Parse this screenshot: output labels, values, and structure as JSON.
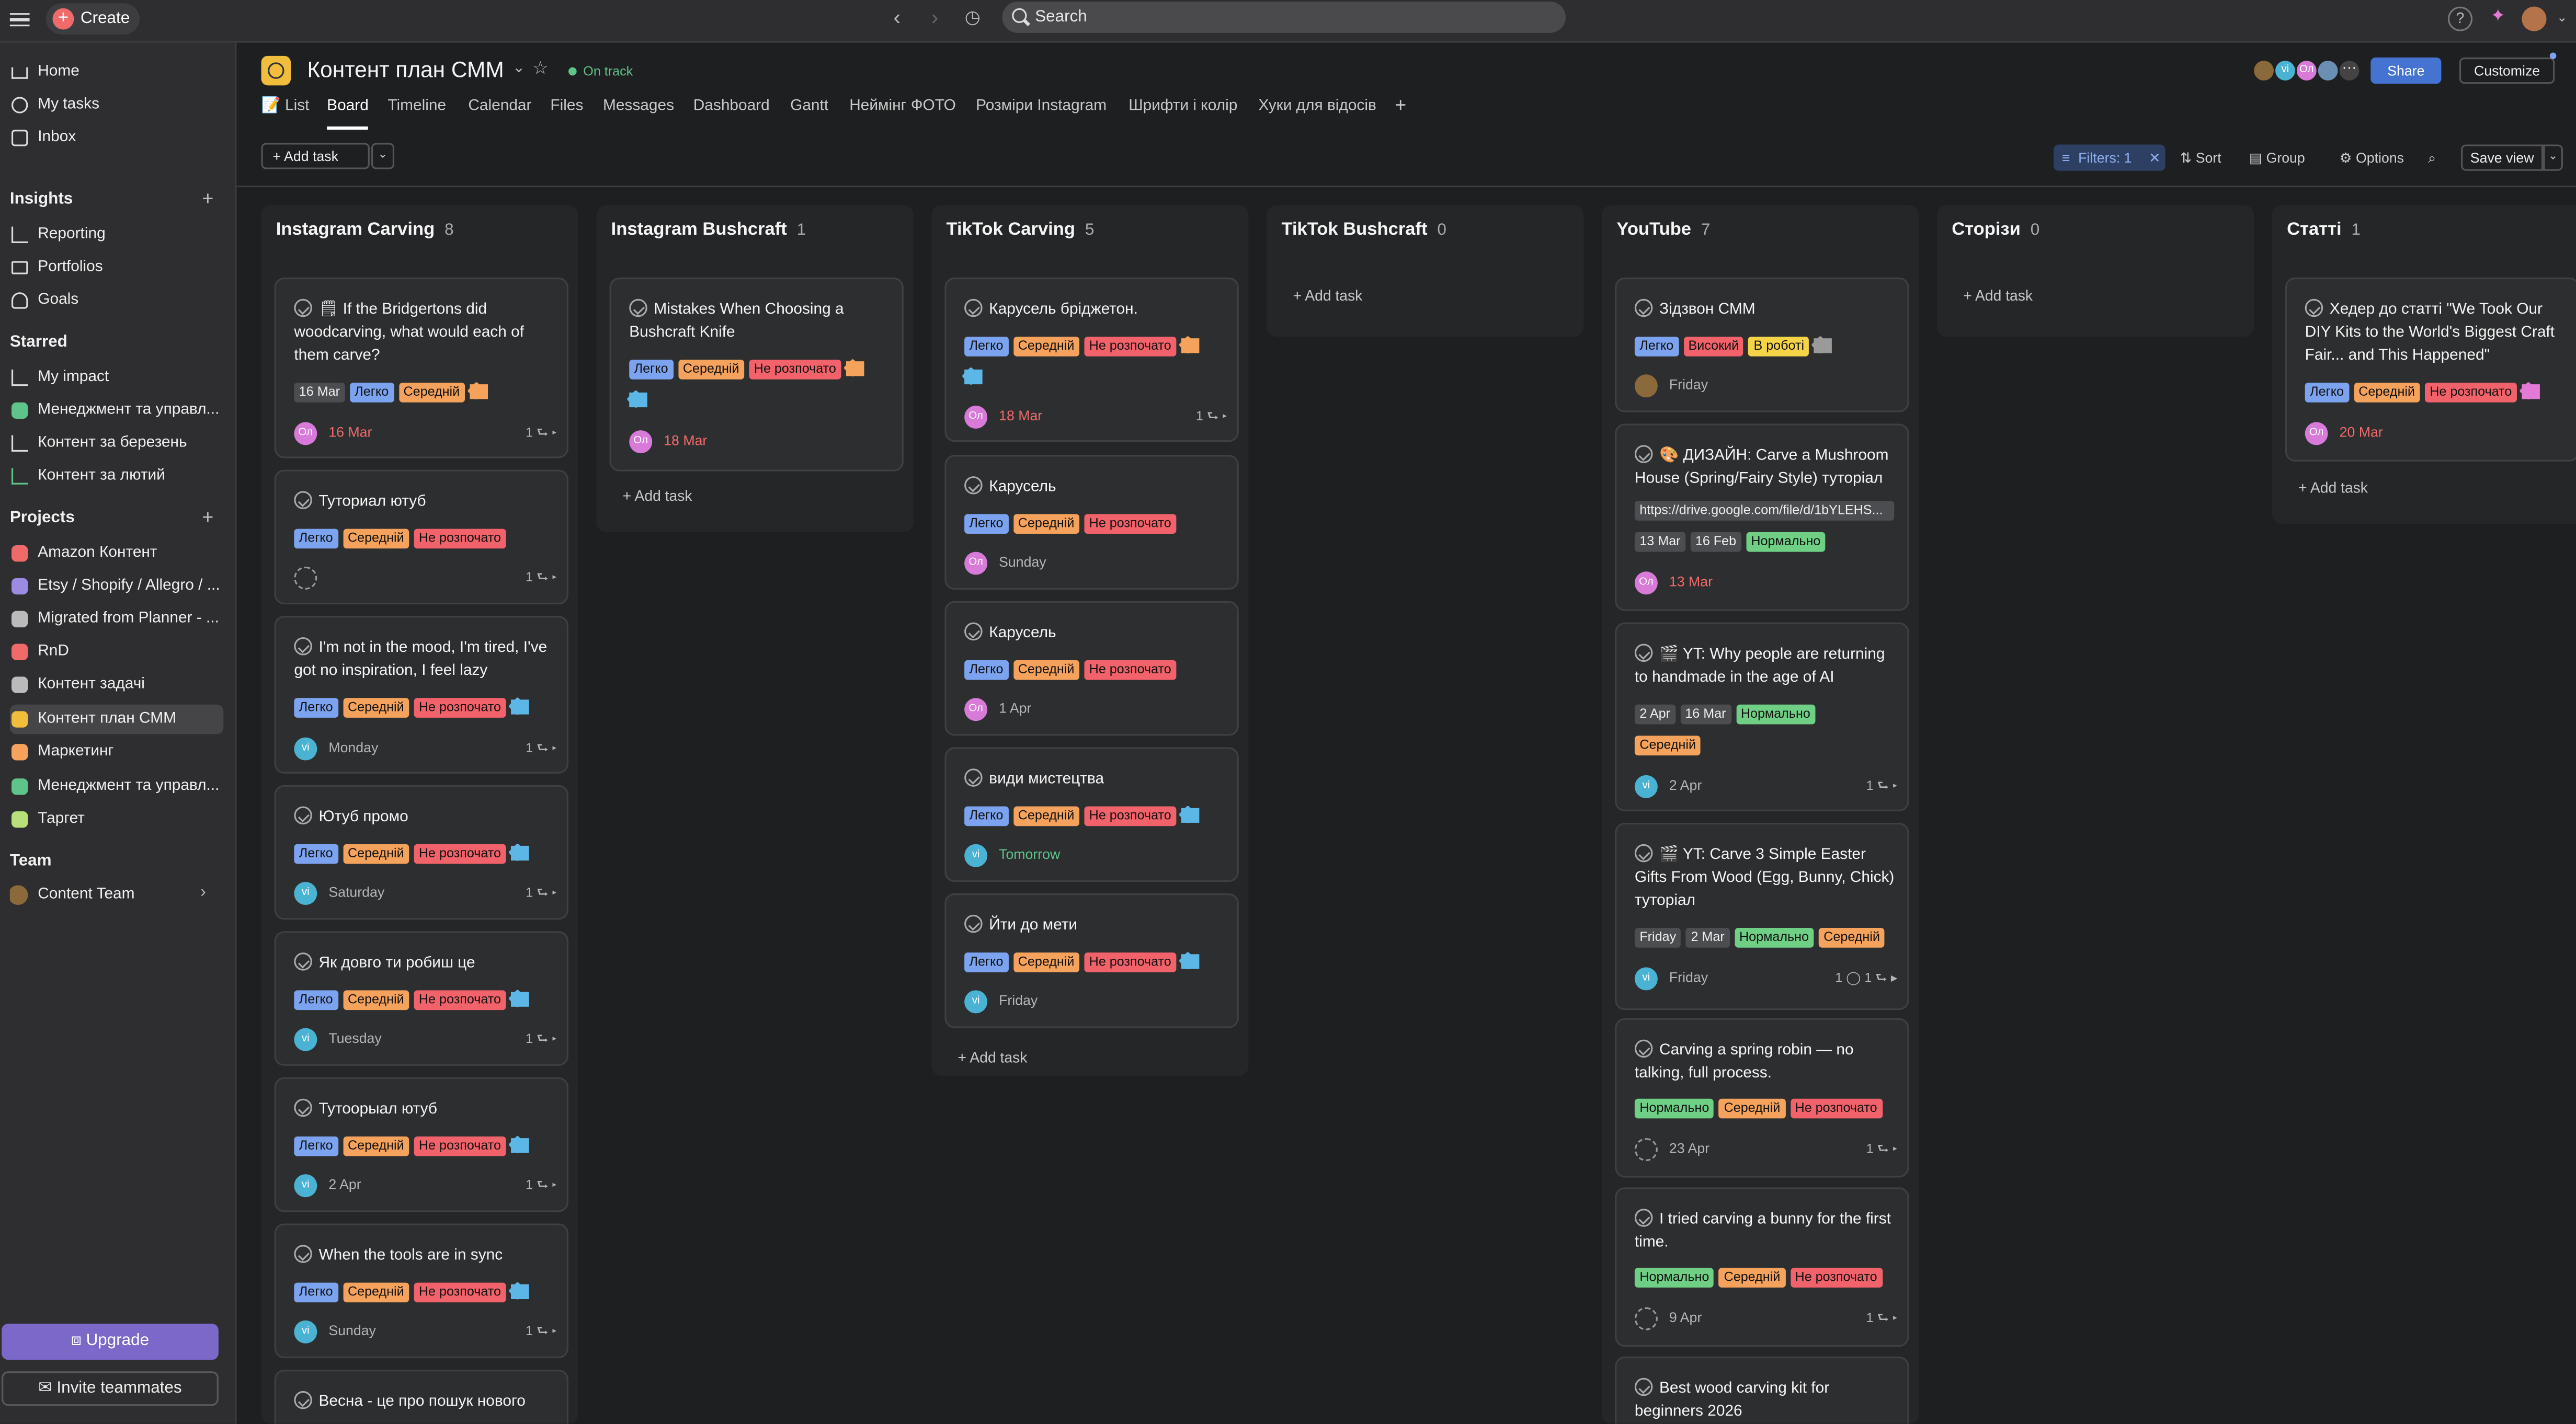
{
  "topbar": {
    "create": "Create",
    "search": "Search"
  },
  "sidebar": {
    "nav": [
      {
        "label": "Home",
        "icon": "home-icon"
      },
      {
        "label": "My tasks",
        "icon": "check-circle-icon"
      },
      {
        "label": "Inbox",
        "icon": "inbox-icon"
      }
    ],
    "insights_title": "Insights",
    "insights": [
      {
        "label": "Reporting"
      },
      {
        "label": "Portfolios"
      },
      {
        "label": "Goals"
      }
    ],
    "starred_title": "Starred",
    "starred": [
      {
        "label": "My impact",
        "color": "#888888"
      },
      {
        "label": "Менеджмент та управл...",
        "color": "#5ec48a"
      },
      {
        "label": "Контент за березень",
        "color": "#aaaaaa"
      },
      {
        "label": "Контент за лютий",
        "color": "#5ec48a"
      }
    ],
    "projects_title": "Projects",
    "projects": [
      {
        "label": "Amazon Контент",
        "color": "#f06a6a"
      },
      {
        "label": "Etsy / Shopify / Allegro / ...",
        "color": "#9d8be3"
      },
      {
        "label": "Migrated from Planner - ...",
        "color": "#bbbbbb"
      },
      {
        "label": "RnD",
        "color": "#f06a6a"
      },
      {
        "label": "Контент задачі",
        "color": "#bbbbbb"
      },
      {
        "label": "Контент план СММ",
        "color": "#f1bd3c"
      },
      {
        "label": "Маркетинг",
        "color": "#f5a25c"
      },
      {
        "label": "Менеджмент та управл...",
        "color": "#5ec48a"
      },
      {
        "label": "Таргет",
        "color": "#b7e07a"
      }
    ],
    "team_title": "Team",
    "team": "Content Team",
    "upgrade": "Upgrade",
    "invite": "Invite teammates"
  },
  "header": {
    "title": "Контент план  СММ",
    "status": "On track",
    "tabs": [
      "📝 List",
      "Board",
      "Timeline",
      "Calendar",
      "Files",
      "Messages",
      "Dashboard",
      "Gantt",
      "Неймінг ФОТО",
      "Розміри Instagram",
      "Шрифти і колір",
      "Хуки для відосів"
    ],
    "share": "Share",
    "customize": "Customize",
    "members": [
      "",
      "vi",
      "Ол",
      ""
    ],
    "add_task": "Add task",
    "filters": "Filters: 1",
    "sort": "Sort",
    "group": "Group",
    "options": "Options",
    "save_view": "Save view"
  },
  "board": {
    "add_task": "Add task",
    "columns": [
      {
        "title": "Instagram Carving",
        "count": "8"
      },
      {
        "title": "Instagram Bushcraft",
        "count": "1"
      },
      {
        "title": "TikTok Carving",
        "count": "5"
      },
      {
        "title": "TikTok Bushcraft",
        "count": "0"
      },
      {
        "title": "YouTube",
        "count": "7"
      },
      {
        "title": "Сторізи",
        "count": "0"
      },
      {
        "title": "Статті",
        "count": "1"
      }
    ],
    "cards": {
      "c0_0": {
        "title": "🗒 If the Bridgertons did woodcarving, what would each of them carve?",
        "tags": [
          "16 Mar",
          "Легко",
          "Середній"
        ],
        "due": "16 Mar",
        "sub": "1 ⮑ ▸",
        "av": "Ол"
      },
      "c0_1": {
        "title": "Туториал ютуб",
        "tags": [
          "Легко",
          "Середній",
          "Не розпочато"
        ],
        "due": "",
        "sub": "1 ⮑ ▸"
      },
      "c0_2": {
        "title": "I'm not in the mood, I'm tired, I've got no inspiration, I feel lazy",
        "tags": [
          "Легко",
          "Середній",
          "Не розпочато"
        ],
        "due": "Monday",
        "sub": "1 ⮑ ▸",
        "av": "vi"
      },
      "c0_3": {
        "title": "Ютуб промо",
        "tags": [
          "Легко",
          "Середній",
          "Не розпочато"
        ],
        "due": "Saturday",
        "sub": "1 ⮑ ▸",
        "av": "vi"
      },
      "c0_4": {
        "title": "Як довго ти робиш це",
        "tags": [
          "Легко",
          "Середній",
          "Не розпочато"
        ],
        "due": "Tuesday",
        "sub": "1 ⮑ ▸",
        "av": "vi"
      },
      "c0_5": {
        "title": "Тутоорыал ютуб",
        "tags": [
          "Легко",
          "Середній",
          "Не розпочато"
        ],
        "due": "2 Apr",
        "sub": "1 ⮑ ▸",
        "av": "vi"
      },
      "c0_6": {
        "title": "When the tools are in sync",
        "tags": [
          "Легко",
          "Середній",
          "Не розпочато"
        ],
        "due": "Sunday",
        "sub": "1 ⮑ ▸",
        "av": "vi"
      },
      "c0_7": {
        "title": "Весна - це про пошук нового"
      },
      "c1_0": {
        "title": "Mistakes When Choosing a Bushcraft Knife",
        "tags": [
          "Легко",
          "Середній",
          "Не розпочато"
        ],
        "due": "18 Mar",
        "av": "Ол"
      },
      "c2_0": {
        "title": "Карусель бріджетон.",
        "tags": [
          "Легко",
          "Середній",
          "Не розпочато"
        ],
        "due": "18 Mar",
        "sub": "1 ⮑ ▸",
        "av": "Ол"
      },
      "c2_1": {
        "title": "Карусель",
        "tags": [
          "Легко",
          "Середній",
          "Не розпочато"
        ],
        "due": "Sunday",
        "av": "Ол"
      },
      "c2_2": {
        "title": "Карусель",
        "tags": [
          "Легко",
          "Середній",
          "Не розпочато"
        ],
        "due": "1 Apr",
        "av": "Ол"
      },
      "c2_3": {
        "title": "види мистецтва",
        "tags": [
          "Легко",
          "Середній",
          "Не розпочато"
        ],
        "due": "Tomorrow",
        "av": "vi"
      },
      "c2_4": {
        "title": "Йти до мети",
        "tags": [
          "Легко",
          "Середній",
          "Не розпочато"
        ],
        "due": "Friday",
        "av": "vi"
      },
      "c4_0": {
        "title": "Зідзвон СММ",
        "tags": [
          "Легко",
          "Високий",
          "В роботі"
        ],
        "due": "Friday"
      },
      "c4_1": {
        "title": "🎨 ДИЗАЙН: Carve a Mushroom House (Spring/Fairy Style) туторіал",
        "link": "https://drive.google.com/file/d/1bYLEHS...",
        "tags": [
          "13 Mar",
          "16 Feb",
          "Нормально"
        ],
        "due": "13 Mar",
        "av": "Ол"
      },
      "c4_2": {
        "title": "🎬 YT: Why people are returning to handmade in the age of AI",
        "tags": [
          "2 Apr",
          "16 Mar",
          "Нормально"
        ],
        "tags2": [
          "Середній"
        ],
        "due": "2 Apr",
        "sub": "1 ⮑ ▸",
        "av": "vi"
      },
      "c4_3": {
        "title": "🎬 YT: Carve 3 Simple Easter Gifts From Wood (Egg, Bunny, Chick) туторіал",
        "tags": [
          "Friday",
          "2 Mar",
          "Нормально",
          "Середній"
        ],
        "due": "Friday",
        "sub": "1 ◯  1 ⮑ ▸",
        "av": "vi"
      },
      "c4_4": {
        "title": "Carving a spring robin — no talking, full process.",
        "tags": [
          "Нормально",
          "Середній",
          "Не розпочато"
        ],
        "due": "23 Apr",
        "sub": "1 ⮑ ▸"
      },
      "c4_5": {
        "title": "I tried carving a bunny for the first time.",
        "tags": [
          "Нормально",
          "Середній",
          "Не розпочато"
        ],
        "due": "9 Apr",
        "sub": "1 ⮑ ▸"
      },
      "c4_6": {
        "title": "Best wood carving kit for beginners 2026"
      },
      "c6_0": {
        "title": "Хедер до статті \"We Took Our DIY Kits to the World's Biggest Craft Fair... and This Happened\"",
        "tags": [
          "Легко",
          "Середній",
          "Не розпочато"
        ],
        "due": "20 Mar",
        "av": "Ол"
      }
    }
  }
}
